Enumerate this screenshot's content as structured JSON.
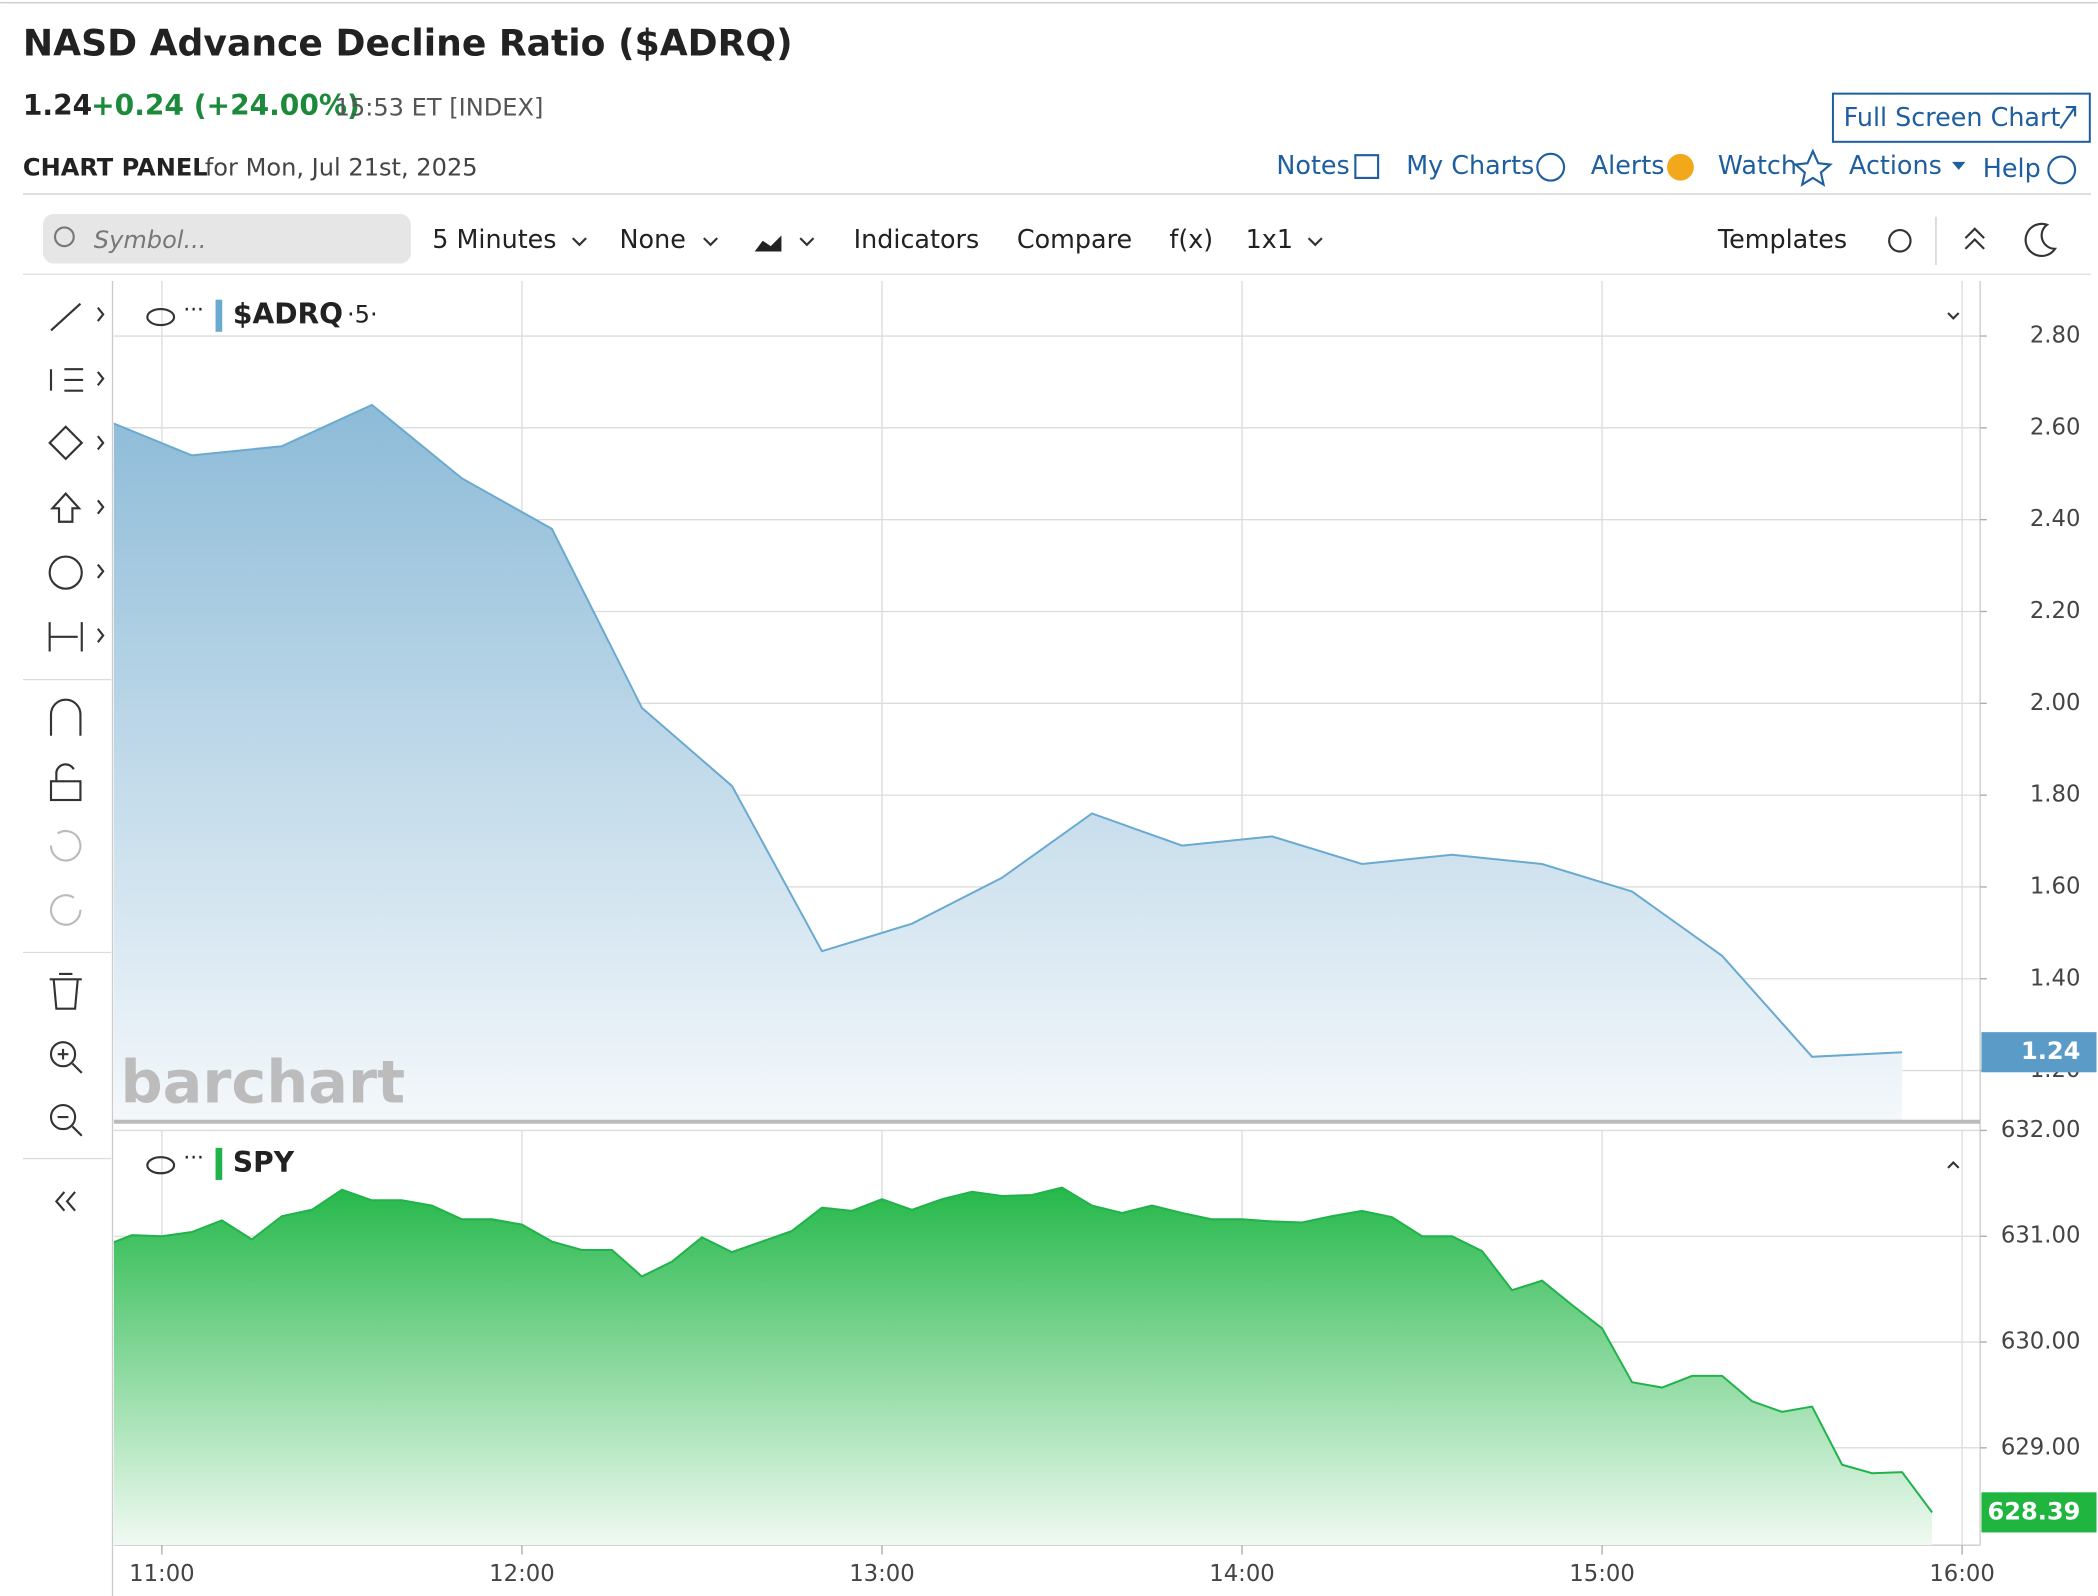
{
  "header": {
    "title": "NASD Advance Decline Ratio ($ADRQ)",
    "last": "1.24",
    "change": "+0.24 (+24.00%)",
    "time": "15:53 ET [INDEX]",
    "full_screen": "Full Screen Chart",
    "panel_label": "CHART PANEL",
    "panel_date": "for Mon, Jul 21st, 2025"
  },
  "nav": [
    "Notes",
    "My Charts",
    "Alerts",
    "Watch",
    "Actions",
    "Help"
  ],
  "toolbar": {
    "symbol_placeholder": "Symbol...",
    "items": [
      "5 Minutes",
      "None",
      "Indicators",
      "Compare",
      "f(x)",
      "1x1",
      "Templates"
    ]
  },
  "watermark": "barchart",
  "chart_data": [
    {
      "type": "area",
      "interval": "·5·",
      "x": [
        "10:50",
        "11:05",
        "11:20",
        "11:35",
        "11:50",
        "12:05",
        "12:20",
        "12:35",
        "12:50",
        "13:05",
        "13:20",
        "13:35",
        "13:50",
        "14:05",
        "14:20",
        "14:35",
        "14:50",
        "15:05",
        "15:20",
        "15:35",
        "15:50"
      ],
      "series": [
        {
          "name": "$ADRQ",
          "color": "#6aaad0",
          "values": [
            2.62,
            2.54,
            2.56,
            2.65,
            2.49,
            2.38,
            1.99,
            1.82,
            1.46,
            1.52,
            1.62,
            1.76,
            1.69,
            1.71,
            1.65,
            1.67,
            1.65,
            1.59,
            1.45,
            1.23,
            1.24
          ]
        }
      ],
      "xlim": [
        "10:52",
        "16:03"
      ],
      "ylim": [
        1.09,
        2.92
      ],
      "yticks": [
        {
          "value": 1.2,
          "label": "1.20"
        },
        {
          "value": 1.4,
          "label": "1.40"
        },
        {
          "value": 1.6,
          "label": "1.60"
        },
        {
          "value": 1.8,
          "label": "1.80"
        },
        {
          "value": 2.0,
          "label": "2.00"
        },
        {
          "value": 2.2,
          "label": "2.20"
        },
        {
          "value": 2.4,
          "label": "2.40"
        },
        {
          "value": 2.6,
          "label": "2.60"
        },
        {
          "value": 2.8,
          "label": "2.80"
        }
      ],
      "last": 1.24,
      "last_color": "#5b9bc8",
      "grid": true
    },
    {
      "type": "area",
      "x": [
        "10:50",
        "10:55",
        "11:00",
        "11:05",
        "11:10",
        "11:15",
        "11:20",
        "11:25",
        "11:30",
        "11:35",
        "11:40",
        "11:45",
        "11:50",
        "11:55",
        "12:00",
        "12:05",
        "12:10",
        "12:15",
        "12:20",
        "12:25",
        "12:30",
        "12:35",
        "12:40",
        "12:45",
        "12:50",
        "12:55",
        "13:00",
        "13:05",
        "13:10",
        "13:15",
        "13:20",
        "13:25",
        "13:30",
        "13:35",
        "13:40",
        "13:45",
        "13:50",
        "13:55",
        "14:00",
        "14:05",
        "14:10",
        "14:15",
        "14:20",
        "14:25",
        "14:30",
        "14:35",
        "14:40",
        "14:45",
        "14:50",
        "14:55",
        "15:00",
        "15:05",
        "15:10",
        "15:15",
        "15:20",
        "15:25",
        "15:30",
        "15:35",
        "15:40",
        "15:45",
        "15:50",
        "15:55"
      ],
      "series": [
        {
          "name": "SPY",
          "color": "#22b24c",
          "values": [
            630.9,
            631.01,
            631.0,
            631.04,
            631.15,
            630.97,
            631.19,
            631.25,
            631.44,
            631.34,
            631.34,
            631.29,
            631.16,
            631.16,
            631.11,
            630.95,
            630.87,
            630.87,
            630.62,
            630.76,
            630.99,
            630.85,
            630.95,
            631.05,
            631.27,
            631.24,
            631.35,
            631.25,
            631.35,
            631.42,
            631.38,
            631.39,
            631.46,
            631.29,
            631.22,
            631.29,
            631.22,
            631.16,
            631.16,
            631.14,
            631.13,
            631.19,
            631.24,
            631.18,
            631.0,
            631.0,
            630.86,
            630.49,
            630.58,
            630.35,
            630.13,
            629.62,
            629.57,
            629.68,
            629.68,
            629.44,
            629.34,
            629.39,
            628.84,
            628.76,
            628.77,
            628.39
          ]
        }
      ],
      "xlim": [
        "10:52",
        "16:03"
      ],
      "xticks": [
        "11:00",
        "12:00",
        "13:00",
        "14:00",
        "15:00",
        "16:00"
      ],
      "ylim": [
        628.08,
        632.0
      ],
      "yticks": [
        {
          "value": 629,
          "label": "629.00"
        },
        {
          "value": 630,
          "label": "630.00"
        },
        {
          "value": 631,
          "label": "631.00"
        },
        {
          "value": 632,
          "label": "632.00"
        }
      ],
      "last": 628.39,
      "last_color": "#1fb53f",
      "grid": true
    }
  ]
}
